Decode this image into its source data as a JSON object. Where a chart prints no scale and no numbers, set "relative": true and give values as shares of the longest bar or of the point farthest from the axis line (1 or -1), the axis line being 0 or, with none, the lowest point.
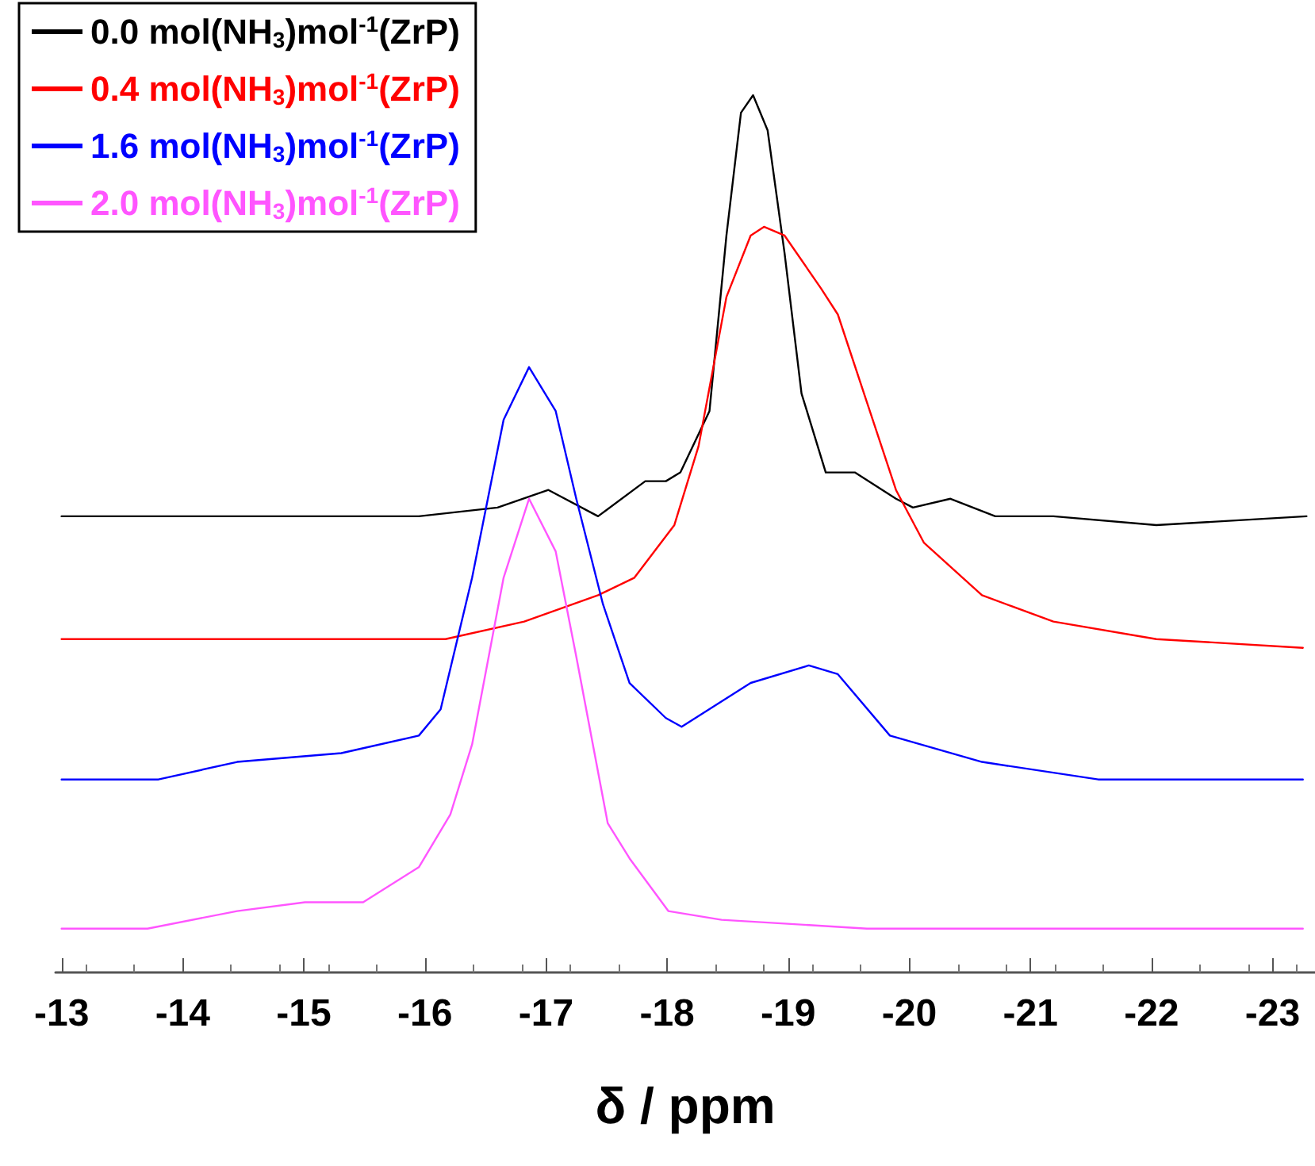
{
  "chart_data": {
    "type": "line",
    "xlabel": "δ / ppm",
    "relative": true,
    "xlim": [
      -12.95,
      -23.35
    ],
    "xticks": [
      -13,
      -14,
      -15,
      -16,
      -17,
      -18,
      -19,
      -20,
      -21,
      -22,
      -23
    ],
    "legend": "top left",
    "grid": false,
    "marker": "none",
    "line_style": "solid",
    "series": [
      {
        "name": "0.0 mol(NH$_{3}$)mol$^{-1}$(ZrP)",
        "color": "#000000",
        "x": [
          -13.0,
          -14.49,
          -15.95,
          -16.6,
          -17.02,
          -17.43,
          -17.82,
          -17.99,
          -18.11,
          -18.35,
          -18.49,
          -18.61,
          -18.71,
          -18.83,
          -18.97,
          -19.11,
          -19.31,
          -19.55,
          -19.89,
          -20.03,
          -20.34,
          -20.71,
          -21.19,
          -22.04,
          -23.28
        ],
        "values": [
          0.52,
          0.52,
          0.52,
          0.53,
          0.55,
          0.52,
          0.56,
          0.56,
          0.57,
          0.64,
          0.84,
          0.98,
          1.0,
          0.96,
          0.82,
          0.66,
          0.57,
          0.57,
          0.54,
          0.53,
          0.54,
          0.52,
          0.52,
          0.51,
          0.52
        ]
      },
      {
        "name": "0.4 mol(NH$_{3}$)mol$^{-1}$(ZrP)",
        "color": "#ff0000",
        "x": [
          -13.0,
          -15.53,
          -16.17,
          -16.82,
          -17.43,
          -17.73,
          -18.06,
          -18.26,
          -18.49,
          -18.69,
          -18.8,
          -18.97,
          -19.27,
          -19.41,
          -19.65,
          -19.89,
          -20.12,
          -20.6,
          -21.19,
          -22.04,
          -23.25
        ],
        "values": [
          0.38,
          0.38,
          0.38,
          0.4,
          0.43,
          0.45,
          0.51,
          0.6,
          0.77,
          0.84,
          0.85,
          0.84,
          0.78,
          0.75,
          0.65,
          0.55,
          0.49,
          0.43,
          0.4,
          0.38,
          0.37
        ]
      },
      {
        "name": "1.6 mol(NH$_{3}$)mol$^{-1}$(ZrP)",
        "color": "#0000ff",
        "x": [
          -13.0,
          -13.8,
          -14.45,
          -15.31,
          -15.95,
          -16.13,
          -16.39,
          -16.65,
          -16.86,
          -17.08,
          -17.25,
          -17.47,
          -17.69,
          -17.99,
          -18.12,
          -18.69,
          -19.17,
          -19.41,
          -19.84,
          -20.6,
          -21.56,
          -23.25
        ],
        "values": [
          0.22,
          0.22,
          0.24,
          0.25,
          0.27,
          0.3,
          0.45,
          0.63,
          0.69,
          0.64,
          0.54,
          0.42,
          0.33,
          0.29,
          0.28,
          0.33,
          0.35,
          0.34,
          0.27,
          0.24,
          0.22,
          0.22
        ]
      },
      {
        "name": "2.0 mol(NH$_{3}$)mol$^{-1}$(ZrP)",
        "color": "#ff55ff",
        "x": [
          -13.0,
          -13.71,
          -14.45,
          -15.01,
          -15.49,
          -15.95,
          -16.21,
          -16.39,
          -16.65,
          -16.86,
          -17.08,
          -17.25,
          -17.51,
          -17.69,
          -18.01,
          -18.45,
          -19.65,
          -23.25
        ],
        "values": [
          0.05,
          0.05,
          0.07,
          0.08,
          0.08,
          0.12,
          0.18,
          0.26,
          0.45,
          0.54,
          0.48,
          0.36,
          0.17,
          0.13,
          0.07,
          0.06,
          0.05,
          0.05
        ]
      }
    ]
  }
}
